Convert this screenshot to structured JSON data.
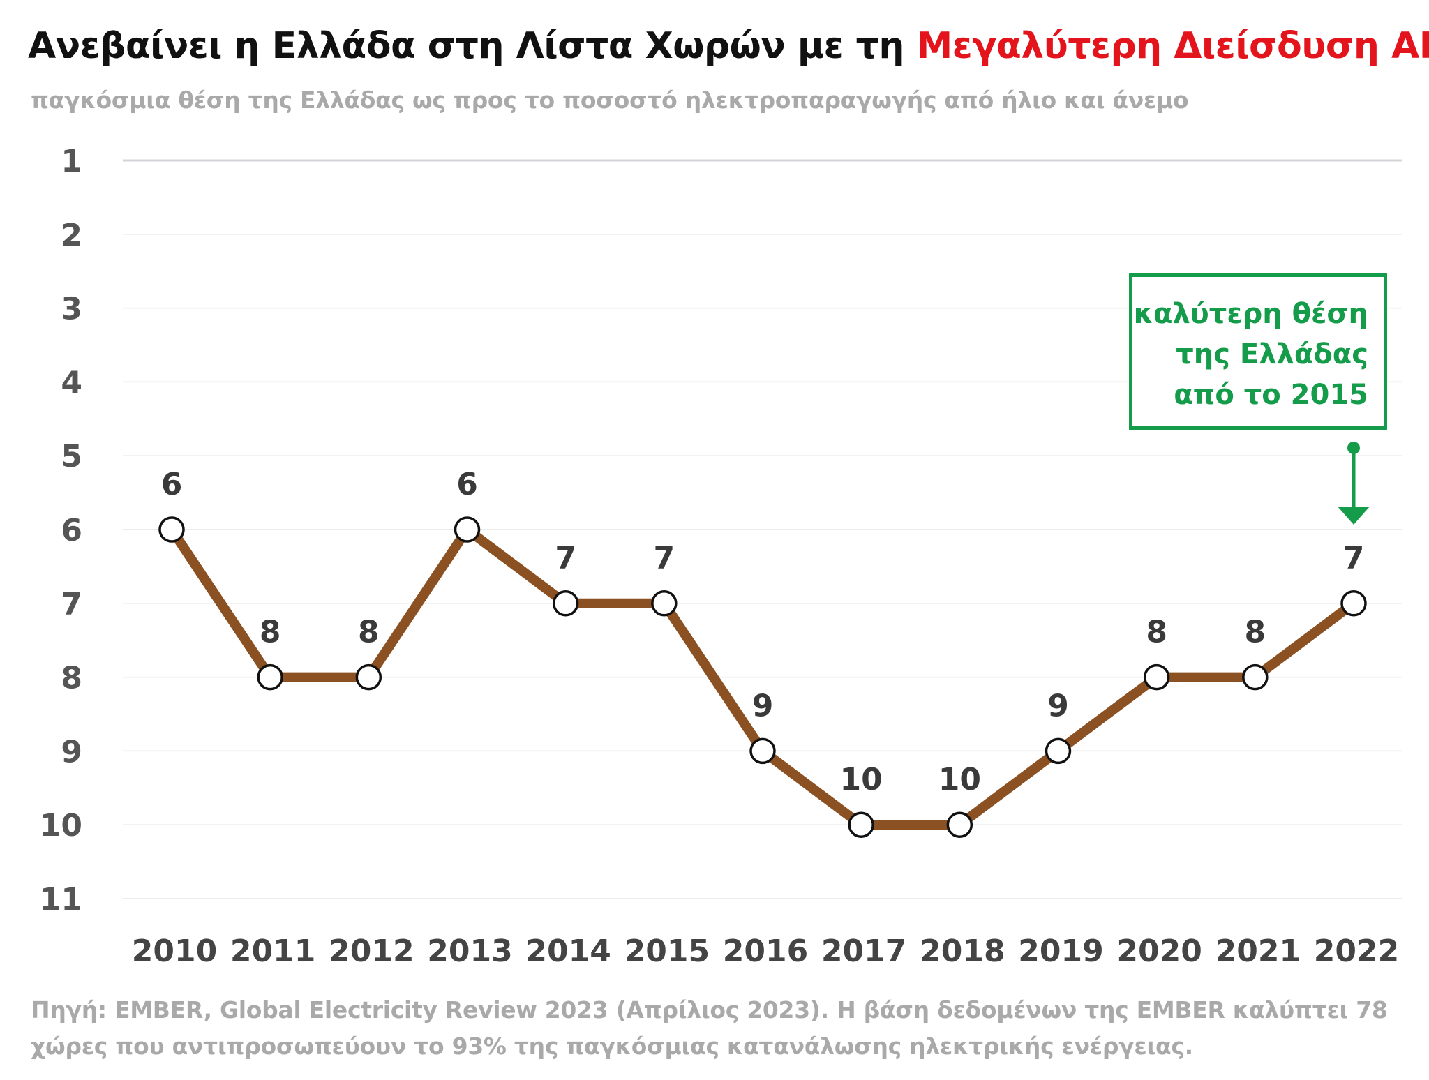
{
  "header": {
    "title_main": "Ανεβαίνει η Ελλάδα στη Λίστα Χωρών με τη ",
    "title_highlight": "Μεγαλύτερη Διείσδυση ΑΠΕ",
    "subtitle": "παγκόσμια θέση της Ελλάδας ως προς το ποσοστό ηλεκτροπαραγωγής από ήλιο και άνεμο"
  },
  "annotation": {
    "line1": "καλύτερη θέση",
    "line2": "της Ελλάδας",
    "line3": "από το 2015"
  },
  "footer": {
    "source": "Πηγή: EMBER, Global Electricity Review 2023 (Απρίλιος 2023). Η βάση δεδομένων της EMBER καλύπτει 78 χώρες που αντιπροσωπεύουν το 93% της παγκόσμιας κατανάλωσης ηλεκτρικής ενέργειας."
  },
  "colors": {
    "line": "#8b5122",
    "highlight": "#e3141b",
    "annotation": "#149c4a",
    "grid": "#e6e6e6"
  },
  "chart_data": {
    "type": "line",
    "x": [
      "2010",
      "2011",
      "2012",
      "2013",
      "2014",
      "2015",
      "2016",
      "2017",
      "2018",
      "2019",
      "2020",
      "2021",
      "2022"
    ],
    "series": [
      {
        "values": [
          6,
          8,
          8,
          6,
          7,
          7,
          9,
          10,
          10,
          9,
          8,
          8,
          7
        ]
      }
    ],
    "yticks": [
      1,
      2,
      3,
      4,
      5,
      6,
      7,
      8,
      9,
      10,
      11
    ],
    "ylim": [
      1,
      11
    ],
    "y_inverted": true,
    "grid": true,
    "data_labels": true
  }
}
